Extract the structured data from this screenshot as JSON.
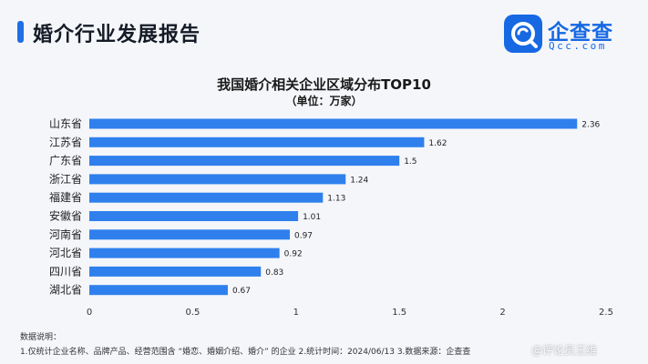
{
  "header": {
    "title": "婚介行业发展报告"
  },
  "logo": {
    "name": "企查查",
    "domain": "Qcc.com",
    "accent": "#1668e3"
  },
  "chart_data": {
    "type": "bar",
    "orientation": "horizontal",
    "title": "我国婚介相关企业区域分布TOP10",
    "subtitle": "（单位：万家）",
    "categories": [
      "山东省",
      "江苏省",
      "广东省",
      "浙江省",
      "福建省",
      "安徽省",
      "河南省",
      "河北省",
      "四川省",
      "湖北省"
    ],
    "values": [
      2.36,
      1.62,
      1.5,
      1.24,
      1.13,
      1.01,
      0.97,
      0.92,
      0.83,
      0.67
    ],
    "xlim": [
      0,
      2.5
    ],
    "xticks": [
      "0",
      "0.5",
      "1",
      "1.5",
      "2",
      "2.5"
    ],
    "bar_color": "#2f80ed",
    "grid": false,
    "legend": "none"
  },
  "notes": {
    "heading": "数据说明：",
    "line": "1.仅统计企业名称、品牌产品、经营范围含 “婚恋、婚姻介绍、婚介” 的企业  2.统计时间：2024/06/13  3.数据来源：企查查"
  },
  "watermark": {
    "text": "@评论员王维"
  }
}
